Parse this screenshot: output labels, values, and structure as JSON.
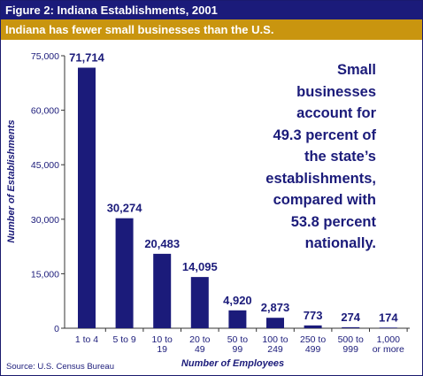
{
  "header": {
    "title": "Figure 2: Indiana Establishments, 2001",
    "subtitle": "Indiana has fewer small businesses than the U.S."
  },
  "callout": {
    "lines": [
      "Small",
      "businesses",
      "account for",
      "49.3 percent of",
      "the state’s",
      "establishments,",
      "compared with",
      "53.8 percent",
      "nationally."
    ]
  },
  "source": "Source: U.S. Census Bureau",
  "colors": {
    "bar": "#1b1b7a",
    "title_bg": "#1b1b7a",
    "subtitle_bg": "#c9950f",
    "text": "#1b1b7a"
  },
  "chart_data": {
    "type": "bar",
    "categories": [
      [
        "1 to 4"
      ],
      [
        "5 to 9"
      ],
      [
        "10 to",
        "19"
      ],
      [
        "20 to",
        "49"
      ],
      [
        "50 to",
        "99"
      ],
      [
        "100 to",
        "249"
      ],
      [
        "250 to",
        "499"
      ],
      [
        "500 to",
        "999"
      ],
      [
        "1,000",
        "or more"
      ]
    ],
    "values": [
      71714,
      30274,
      20483,
      14095,
      4920,
      2873,
      773,
      274,
      174
    ],
    "value_labels": [
      "71,714",
      "30,274",
      "20,483",
      "14,095",
      "4,920",
      "2,873",
      "773",
      "274",
      "174"
    ],
    "yticks": [
      0,
      15000,
      30000,
      45000,
      60000,
      75000
    ],
    "ytick_labels": [
      "0",
      "15,000",
      "30,000",
      "45,000",
      "60,000",
      "75,000"
    ],
    "ylim": [
      0,
      75000
    ],
    "xlabel": "Number of Employees",
    "ylabel": "Number of Establishments",
    "grid": false
  }
}
